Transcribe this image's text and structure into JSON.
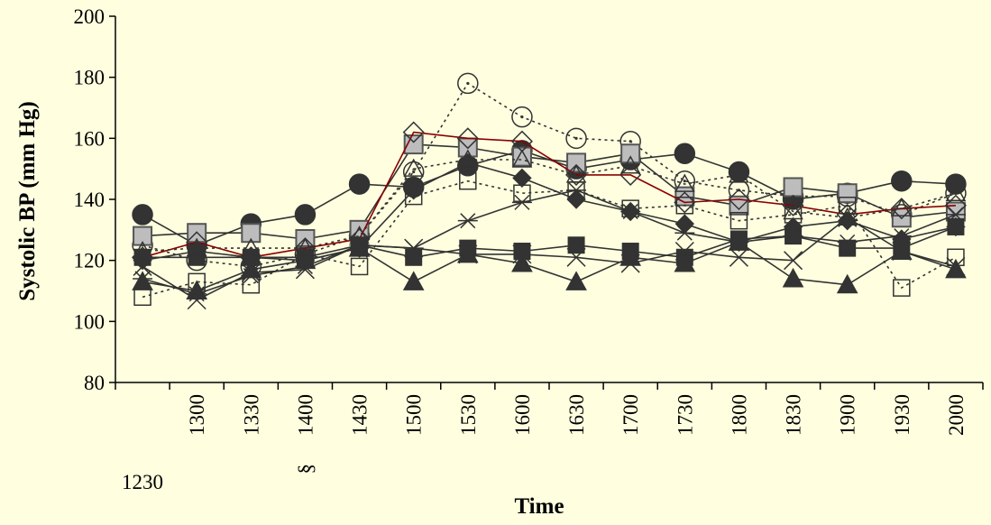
{
  "chart_data": {
    "type": "line",
    "xlabel": "Time",
    "ylabel": "Systolic BP (mm Hg)",
    "categories": [
      "1230",
      "1300",
      "1330",
      "1400",
      "1430",
      "1500",
      "1530",
      "1600",
      "1630",
      "1700",
      "1730",
      "1800",
      "1830",
      "1900",
      "1930",
      "2000"
    ],
    "category_annotations": [
      {
        "category": "1400",
        "text": "§"
      }
    ],
    "ylim": [
      80,
      200
    ],
    "yticks": [
      80,
      100,
      120,
      140,
      160,
      180,
      200
    ],
    "grid": false,
    "legend": "none",
    "background": "#FFFFE0",
    "series": [
      {
        "marker": "circle-filled",
        "line": "solid",
        "color": "#333333",
        "values": [
          135,
          125,
          132,
          135,
          145,
          144,
          151,
          156,
          150,
          153,
          155,
          149,
          140,
          142,
          146,
          145
        ]
      },
      {
        "marker": "circle-open",
        "line": "dotted",
        "color": "#333333",
        "values": [
          125,
          120,
          118,
          122,
          128,
          149,
          178,
          167,
          160,
          159,
          146,
          143,
          141,
          141,
          135,
          142
        ]
      },
      {
        "marker": "square-gray",
        "line": "solid",
        "color": "#333333",
        "values": [
          128,
          129,
          129,
          127,
          130,
          158,
          157,
          154,
          152,
          155,
          141,
          138,
          144,
          142,
          134,
          136
        ]
      },
      {
        "marker": "diamond-open",
        "line": "solid",
        "color": "#8B0000",
        "values": [
          121,
          126,
          121,
          124,
          127,
          162,
          160,
          159,
          148,
          148,
          139,
          140,
          138,
          135,
          137,
          138
        ]
      },
      {
        "marker": "square-open",
        "line": "dotted",
        "color": "#333333",
        "values": [
          108,
          113,
          112,
          122,
          118,
          141,
          146,
          142,
          143,
          137,
          138,
          133,
          135,
          138,
          111,
          121
        ]
      },
      {
        "marker": "square-filled",
        "line": "solid",
        "color": "#333333",
        "values": [
          121,
          121,
          121,
          121,
          125,
          121,
          124,
          123,
          125,
          123,
          121,
          127,
          128,
          124,
          124,
          131
        ]
      },
      {
        "marker": "triangle-filled",
        "line": "solid",
        "color": "#333333",
        "values": [
          113,
          110,
          117,
          120,
          124,
          113,
          122,
          119,
          113,
          121,
          119,
          126,
          114,
          112,
          123,
          117
        ]
      },
      {
        "marker": "asterisk",
        "line": "solid",
        "color": "#333333",
        "values": [
          114,
          109,
          115,
          118,
          125,
          124,
          133,
          139,
          143,
          136,
          129,
          126,
          128,
          126,
          128,
          135
        ]
      },
      {
        "marker": "cross",
        "line": "solid",
        "color": "#333333",
        "values": [
          118,
          107,
          116,
          117,
          125,
          124,
          122,
          122,
          121,
          119,
          123,
          121,
          120,
          134,
          123,
          118
        ]
      },
      {
        "marker": "diamond-filled",
        "line": "solid",
        "color": "#333333",
        "values": [
          120,
          123,
          121,
          120,
          124,
          143,
          152,
          147,
          140,
          136,
          132,
          126,
          131,
          133,
          127,
          131
        ]
      },
      {
        "marker": "triangle-open",
        "line": "dotted",
        "color": "#333333",
        "values": [
          123,
          124,
          124,
          124,
          128,
          150,
          153,
          153,
          148,
          151,
          145,
          148,
          136,
          134,
          137,
          142
        ]
      }
    ]
  }
}
